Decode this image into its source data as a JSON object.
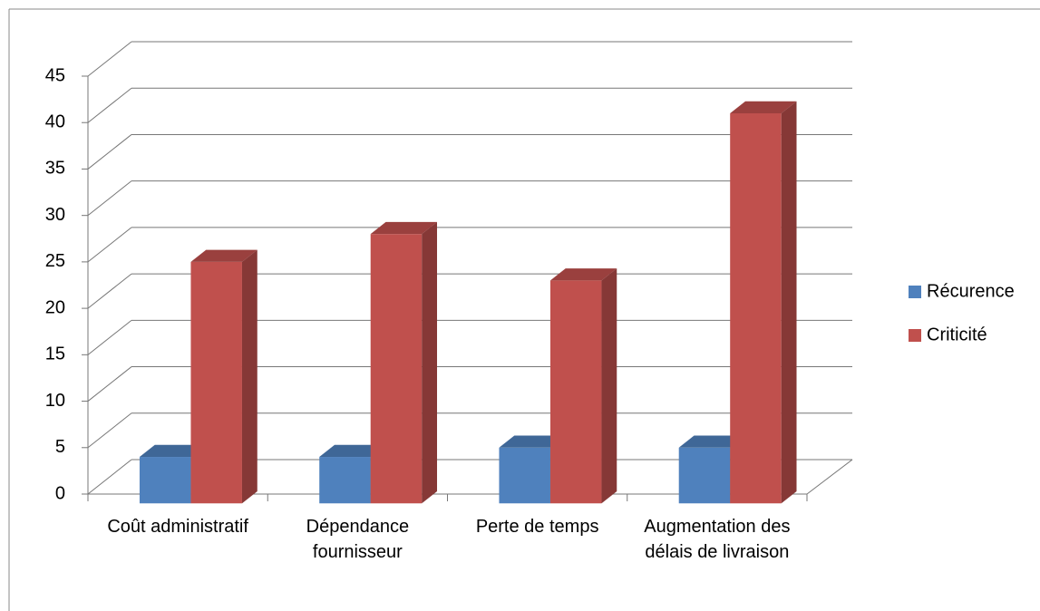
{
  "chart_data": {
    "type": "bar3d",
    "categories": [
      "Coût administratif",
      "Dépendance fournisseur",
      "Perte de temps",
      "Augmentation des délais de livraison"
    ],
    "series": [
      {
        "name": "Récurence",
        "color": "#4f81bd",
        "values": [
          5,
          5,
          6,
          6
        ]
      },
      {
        "name": "Criticité",
        "color": "#c0504d",
        "values": [
          26,
          29,
          24,
          42
        ]
      }
    ],
    "ylim": [
      0,
      45
    ],
    "yticks": [
      0,
      5,
      10,
      15,
      20,
      25,
      30,
      35,
      40,
      45
    ],
    "grid": true,
    "legend": "right"
  }
}
